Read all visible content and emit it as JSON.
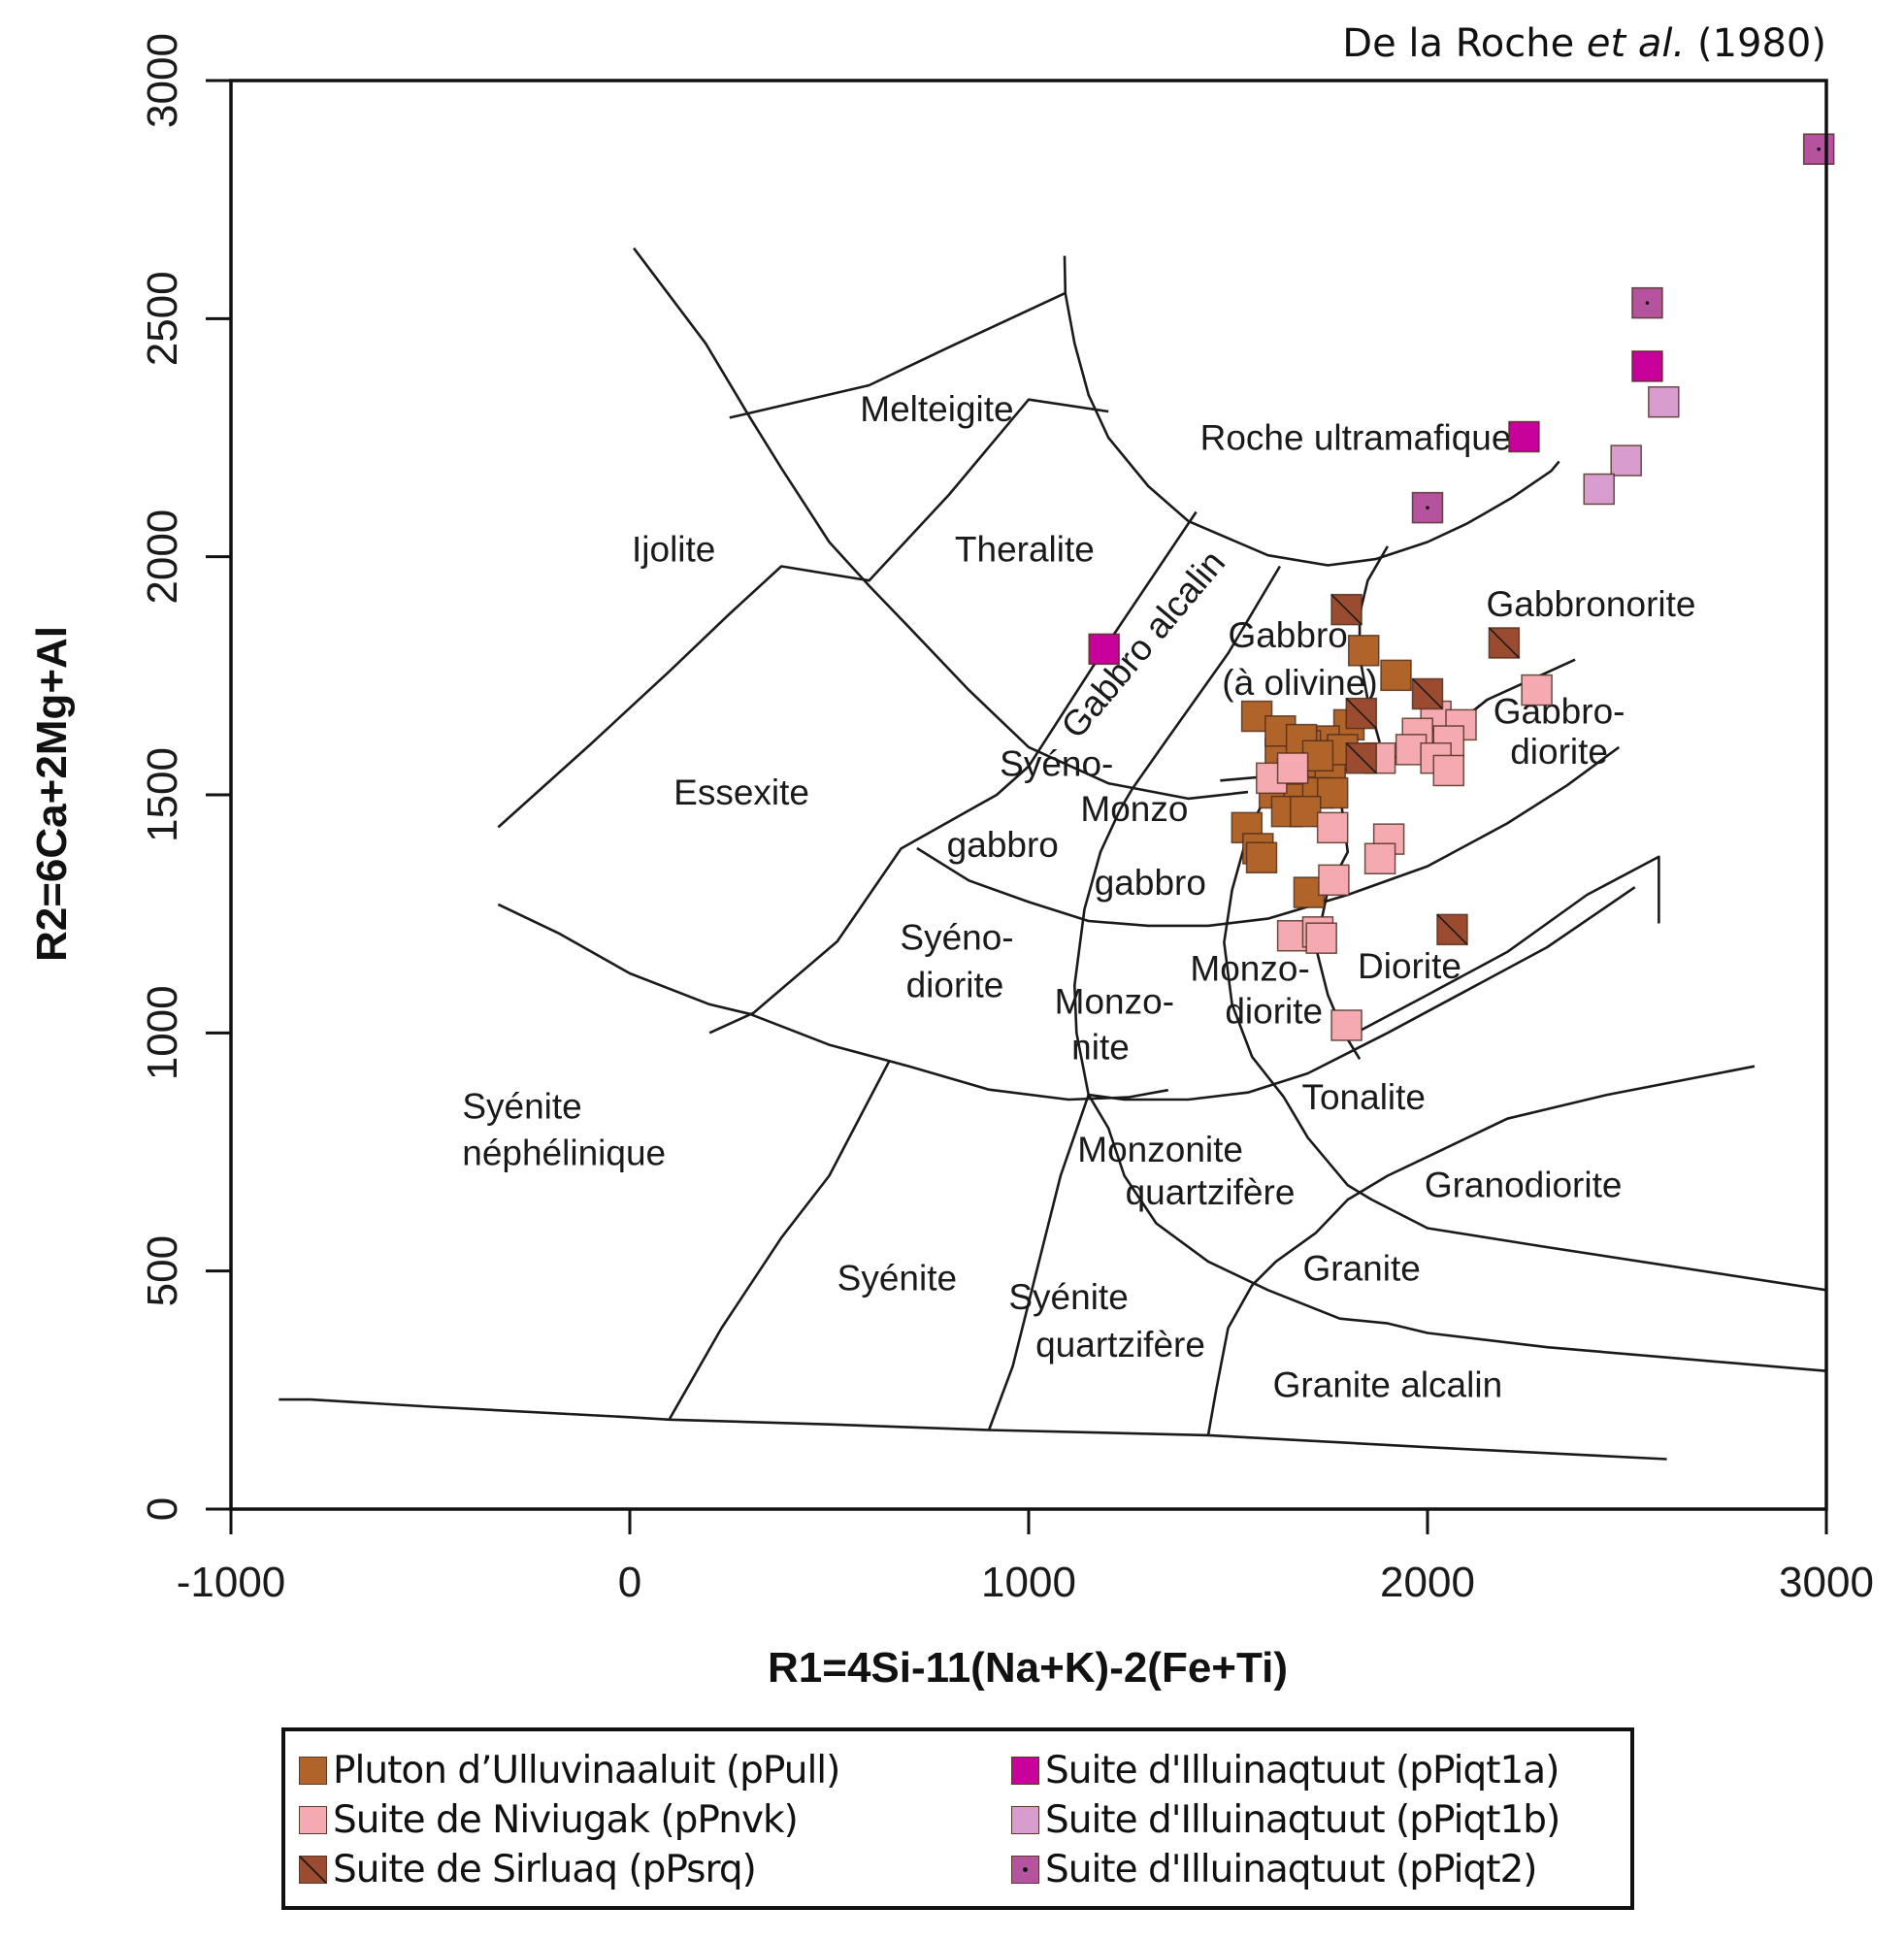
{
  "chart_data": {
    "type": "scatter",
    "title": "",
    "reference": {
      "prefix": "De la Roche ",
      "italic": "et al.",
      "suffix": " (1980)"
    },
    "xlabel": "R1=4Si-11(Na+K)-2(Fe+Ti)",
    "ylabel": "R2=6Ca+2Mg+Al",
    "xlim": [
      -1000,
      3000
    ],
    "ylim": [
      0,
      3000
    ],
    "xticks": [
      -1000,
      0,
      1000,
      2000,
      3000
    ],
    "yticks": [
      0,
      500,
      1000,
      1500,
      2000,
      2500,
      3000
    ],
    "xtick_labels": [
      "-1000",
      "0",
      "1000",
      "2000",
      "3000"
    ],
    "ytick_labels": [
      "0",
      "500",
      "1000",
      "1500",
      "2000",
      "2500",
      "3000"
    ],
    "grid": false,
    "legend_position": "bottom",
    "series": [
      {
        "name": "Pluton d’Ulluvinaaluit (pPull)",
        "color": "#B0642A",
        "marker": "square",
        "points": [
          [
            1840,
            1803
          ],
          [
            1921,
            1751
          ],
          [
            1572,
            1665
          ],
          [
            1803,
            1647
          ],
          [
            1741,
            1613
          ],
          [
            1694,
            1603
          ],
          [
            1631,
            1587
          ],
          [
            1709,
            1569
          ],
          [
            1662,
            1543
          ],
          [
            1756,
            1535
          ],
          [
            1616,
            1504
          ],
          [
            1678,
            1491
          ],
          [
            1725,
            1504
          ],
          [
            1762,
            1504
          ],
          [
            1647,
            1465
          ],
          [
            1694,
            1465
          ],
          [
            1547,
            1431
          ],
          [
            1575,
            1387
          ],
          [
            1584,
            1368
          ],
          [
            1703,
            1295
          ],
          [
            1787,
            1595
          ],
          [
            1631,
            1634
          ],
          [
            1684,
            1616
          ],
          [
            1725,
            1582
          ]
        ]
      },
      {
        "name": "Suite de Niviugak (pPnvk)",
        "color": "#F4AAB0",
        "marker": "square",
        "points": [
          [
            2274,
            1720
          ],
          [
            2021,
            1665
          ],
          [
            2084,
            1647
          ],
          [
            1975,
            1629
          ],
          [
            2053,
            1613
          ],
          [
            1959,
            1595
          ],
          [
            2021,
            1577
          ],
          [
            2053,
            1551
          ],
          [
            1881,
            1577
          ],
          [
            1609,
            1535
          ],
          [
            1662,
            1556
          ],
          [
            1762,
            1431
          ],
          [
            1903,
            1407
          ],
          [
            1881,
            1366
          ],
          [
            1765,
            1321
          ],
          [
            1662,
            1204
          ],
          [
            1725,
            1212
          ],
          [
            1734,
            1199
          ],
          [
            1797,
            1016
          ]
        ]
      },
      {
        "name": "Suite de Sirluaq (pPsrq)",
        "color": "#9B4B30",
        "marker": "square-diagonal",
        "points": [
          [
            1797,
            1889
          ],
          [
            2192,
            1819
          ],
          [
            2000,
            1712
          ],
          [
            1834,
            1671
          ],
          [
            1834,
            1577
          ],
          [
            2062,
            1217
          ]
        ]
      },
      {
        "name": "Suite d'Illuinaqtuut (pPiqt1a)",
        "color": "#C8009C",
        "marker": "square",
        "points": [
          [
            1189,
            1806
          ],
          [
            2242,
            2252
          ],
          [
            2551,
            2400
          ]
        ]
      },
      {
        "name": "Suite d'Illuinaqtuut (pPiqt1b)",
        "color": "#D89CCF",
        "marker": "square",
        "points": [
          [
            2592,
            2325
          ],
          [
            2498,
            2202
          ],
          [
            2430,
            2142
          ]
        ]
      },
      {
        "name": "Suite d'Illuinaqtuut (pPiqt2)",
        "color": "#B5539F",
        "marker": "square-dot",
        "points": [
          [
            2981,
            2856
          ],
          [
            2551,
            2533
          ],
          [
            2000,
            2103
          ]
        ]
      }
    ],
    "field_labels": [
      {
        "text": "Melteigite",
        "x": 770,
        "y": 2285
      },
      {
        "text": "Ijolite",
        "x": 110,
        "y": 1990
      },
      {
        "text": "Theralite",
        "x": 990,
        "y": 1990
      },
      {
        "text": "Roche ultramafique",
        "x": 1820,
        "y": 2225
      },
      {
        "text": "Gabbro alcalin",
        "x": 1310,
        "y": 1800,
        "rotate": -50
      },
      {
        "text": "Gabbro",
        "x": 1650,
        "y": 1810
      },
      {
        "text": "(à olivine)",
        "x": 1680,
        "y": 1710
      },
      {
        "text": "Gabbronorite",
        "x": 2410,
        "y": 1875
      },
      {
        "text": "Gabbro-",
        "x": 2330,
        "y": 1650
      },
      {
        "text": "diorite",
        "x": 2330,
        "y": 1565
      },
      {
        "text": "Essexite",
        "x": 280,
        "y": 1480
      },
      {
        "text": "Syéno-",
        "x": 1070,
        "y": 1540
      },
      {
        "text": "Monzo",
        "x": 1265,
        "y": 1445
      },
      {
        "text": "gabbro",
        "x": 935,
        "y": 1370
      },
      {
        "text": "gabbro",
        "x": 1305,
        "y": 1290
      },
      {
        "text": "Syéno-",
        "x": 820,
        "y": 1175
      },
      {
        "text": "diorite",
        "x": 815,
        "y": 1075
      },
      {
        "text": "Monzo-",
        "x": 1555,
        "y": 1110
      },
      {
        "text": "Diorite",
        "x": 1955,
        "y": 1115
      },
      {
        "text": "Monzo-",
        "x": 1215,
        "y": 1040
      },
      {
        "text": "nite",
        "x": 1180,
        "y": 945
      },
      {
        "text": "diorite",
        "x": 1615,
        "y": 1020
      },
      {
        "text": "Syénite",
        "x": -270,
        "y": 820
      },
      {
        "text": "néphélinique",
        "x": -165,
        "y": 722
      },
      {
        "text": "Tonalite",
        "x": 1840,
        "y": 840
      },
      {
        "text": "Monzonite",
        "x": 1330,
        "y": 730
      },
      {
        "text": "quartzifère",
        "x": 1455,
        "y": 640
      },
      {
        "text": "Granodiorite",
        "x": 2240,
        "y": 655
      },
      {
        "text": "Syénite",
        "x": 670,
        "y": 460
      },
      {
        "text": "Granite",
        "x": 1835,
        "y": 480
      },
      {
        "text": "Syénite",
        "x": 1100,
        "y": 420
      },
      {
        "text": "quartzifère",
        "x": 1230,
        "y": 320
      },
      {
        "text": "Granite alcalin",
        "x": 1900,
        "y": 235
      }
    ],
    "boundaries": [
      [
        [
          10,
          2648
        ],
        [
          190,
          2448
        ],
        [
          300,
          2294
        ],
        [
          380,
          2186
        ],
        [
          500,
          2031
        ],
        [
          600,
          1939
        ],
        [
          700,
          1852
        ],
        [
          850,
          1720
        ],
        [
          1000,
          1600
        ],
        [
          1200,
          1524
        ],
        [
          1400,
          1492
        ],
        [
          1550,
          1506
        ]
      ],
      [
        [
          1090,
          2632
        ],
        [
          1092,
          2553
        ],
        [
          1115,
          2448
        ],
        [
          1150,
          2340
        ],
        [
          1200,
          2250
        ],
        [
          1300,
          2148
        ],
        [
          1400,
          2075
        ],
        [
          1600,
          2003
        ],
        [
          1750,
          1982
        ],
        [
          1870,
          1995
        ],
        [
          2000,
          2031
        ],
        [
          2100,
          2070
        ],
        [
          2210,
          2123
        ],
        [
          2310,
          2180
        ],
        [
          2330,
          2200
        ]
      ],
      [
        [
          1090,
          2553
        ],
        [
          800,
          2440
        ],
        [
          600,
          2360
        ],
        [
          250,
          2292
        ]
      ],
      [
        [
          -330,
          1432
        ],
        [
          -100,
          1605
        ],
        [
          100,
          1760
        ],
        [
          250,
          1880
        ],
        [
          380,
          1980
        ],
        [
          600,
          1950
        ],
        [
          800,
          2130
        ],
        [
          1000,
          2330
        ],
        [
          1200,
          2305
        ]
      ],
      [
        [
          1420,
          2094
        ],
        [
          1200,
          1820
        ],
        [
          1000,
          1560
        ],
        [
          920,
          1500
        ],
        [
          680,
          1387
        ],
        [
          520,
          1192
        ],
        [
          310,
          1042
        ],
        [
          200,
          1000
        ]
      ],
      [
        [
          -330,
          1270
        ],
        [
          -180,
          1210
        ],
        [
          0,
          1125
        ],
        [
          200,
          1060
        ],
        [
          300,
          1040
        ],
        [
          500,
          975
        ],
        [
          700,
          930
        ],
        [
          900,
          881
        ],
        [
          1100,
          860
        ],
        [
          1250,
          865
        ],
        [
          1350,
          880
        ]
      ],
      [
        [
          1630,
          1980
        ],
        [
          1500,
          1797
        ],
        [
          1350,
          1620
        ],
        [
          1260,
          1513
        ],
        [
          1230,
          1470
        ],
        [
          1180,
          1380
        ],
        [
          1140,
          1260
        ],
        [
          1115,
          1100
        ],
        [
          1120,
          1000
        ],
        [
          1150,
          870
        ]
      ],
      [
        [
          720,
          1388
        ],
        [
          850,
          1320
        ],
        [
          1000,
          1275
        ],
        [
          1150,
          1235
        ],
        [
          1300,
          1225
        ],
        [
          1450,
          1225
        ],
        [
          1600,
          1240
        ],
        [
          1800,
          1290
        ],
        [
          2000,
          1350
        ],
        [
          2200,
          1440
        ],
        [
          2350,
          1520
        ],
        [
          2480,
          1600
        ]
      ],
      [
        [
          1600,
          1506
        ],
        [
          1550,
          1420
        ],
        [
          1510,
          1300
        ],
        [
          1490,
          1190
        ],
        [
          1510,
          1060
        ],
        [
          1560,
          950
        ],
        [
          1640,
          865
        ],
        [
          1700,
          780
        ],
        [
          1800,
          680
        ],
        [
          1860,
          650
        ],
        [
          2000,
          590
        ],
        [
          2300,
          550
        ],
        [
          3000,
          460
        ]
      ],
      [
        [
          1480,
          1530
        ],
        [
          1820,
          1555
        ],
        [
          2000,
          1600
        ],
        [
          2150,
          1700
        ],
        [
          2370,
          1784
        ]
      ],
      [
        [
          2000,
          1600
        ],
        [
          2150,
          1700
        ]
      ],
      [
        [
          1900,
          2022
        ],
        [
          1850,
          1950
        ],
        [
          1830,
          1880
        ],
        [
          1830,
          1790
        ],
        [
          1850,
          1700
        ],
        [
          1880,
          1610
        ]
      ],
      [
        [
          1780,
          1505
        ],
        [
          1800,
          1380
        ],
        [
          1750,
          1300
        ],
        [
          1720,
          1180
        ],
        [
          1750,
          1080
        ],
        [
          1790,
          1000
        ],
        [
          1830,
          945
        ]
      ],
      [
        [
          1150,
          870
        ],
        [
          1240,
          860
        ],
        [
          1400,
          860
        ],
        [
          1550,
          875
        ],
        [
          1700,
          915
        ],
        [
          1900,
          1000
        ],
        [
          2100,
          1090
        ],
        [
          2300,
          1180
        ],
        [
          2520,
          1306
        ]
      ],
      [
        [
          1150,
          870
        ],
        [
          1200,
          800
        ],
        [
          1240,
          700
        ],
        [
          1320,
          600
        ],
        [
          1450,
          520
        ],
        [
          1600,
          460
        ],
        [
          1780,
          400
        ],
        [
          1900,
          390
        ],
        [
          2000,
          370
        ],
        [
          2300,
          340
        ],
        [
          3000,
          290
        ]
      ],
      [
        [
          1150,
          870
        ],
        [
          1080,
          700
        ],
        [
          1020,
          500
        ],
        [
          960,
          300
        ],
        [
          900,
          165
        ]
      ],
      [
        [
          650,
          940
        ],
        [
          500,
          700
        ],
        [
          380,
          570
        ],
        [
          230,
          380
        ],
        [
          100,
          190
        ]
      ],
      [
        [
          -880,
          230
        ],
        [
          -800,
          230
        ],
        [
          -500,
          215
        ],
        [
          0,
          193
        ],
        [
          100,
          188
        ],
        [
          500,
          178
        ],
        [
          900,
          166
        ],
        [
          1450,
          155
        ],
        [
          2000,
          130
        ],
        [
          2600,
          105
        ]
      ],
      [
        [
          1450,
          155
        ],
        [
          1470,
          250
        ],
        [
          1500,
          380
        ],
        [
          1560,
          470
        ],
        [
          1620,
          520
        ],
        [
          1720,
          580
        ],
        [
          1800,
          650
        ],
        [
          1900,
          700
        ],
        [
          2000,
          740
        ],
        [
          2200,
          820
        ],
        [
          2450,
          870
        ],
        [
          2820,
          930
        ]
      ],
      [
        [
          1820,
          1000
        ],
        [
          2000,
          1080
        ],
        [
          2200,
          1170
        ],
        [
          2400,
          1290
        ],
        [
          2580,
          1370
        ],
        [
          2580,
          1230
        ]
      ]
    ]
  }
}
